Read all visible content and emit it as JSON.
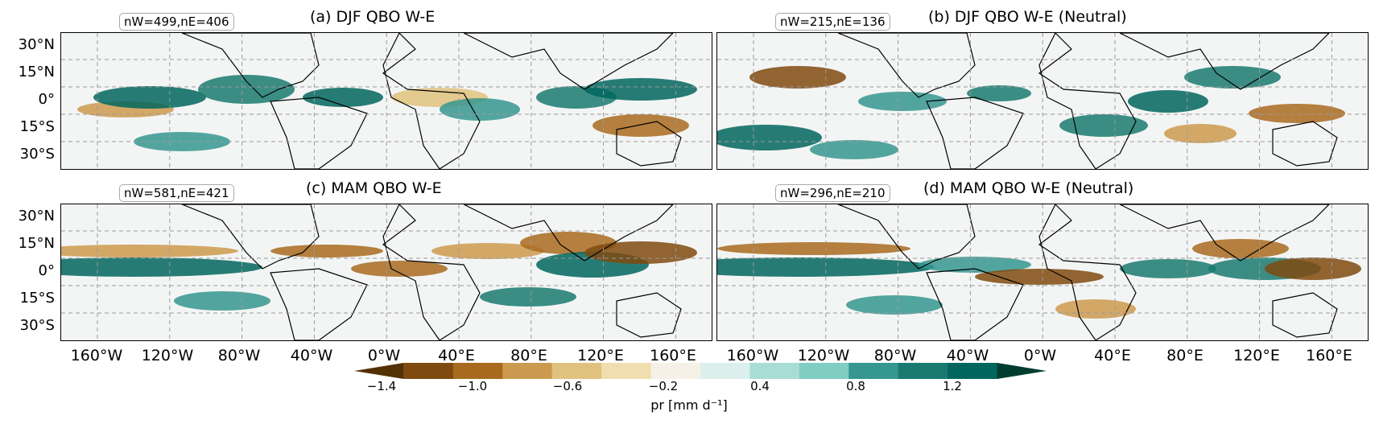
{
  "panels": [
    {
      "id": "a",
      "title": "(a) DJF QBO W-E",
      "counts": "nW=499,nE=406"
    },
    {
      "id": "b",
      "title": "(b) DJF QBO W-E (Neutral)",
      "counts": "nW=215,nE=136"
    },
    {
      "id": "c",
      "title": "(c) MAM QBO W-E",
      "counts": "nW=581,nE=421"
    },
    {
      "id": "d",
      "title": "(d) MAM QBO W-E (Neutral)",
      "counts": "nW=296,nE=210"
    }
  ],
  "lat_labels": [
    "30°N",
    "15°N",
    "0°",
    "15°S",
    "30°S"
  ],
  "lon_labels": [
    "160°W",
    "120°W",
    "80°W",
    "40°W",
    "0°W",
    "40°E",
    "80°E",
    "120°E",
    "160°E"
  ],
  "colorbar": {
    "tick_labels": [
      "−1.4",
      "−1.0",
      "−0.6",
      "−0.2",
      "0.4",
      "0.8",
      "1.2"
    ],
    "title": "pr [mm d⁻¹]",
    "colors": [
      "#543005",
      "#7f4a0f",
      "#a86a1f",
      "#cc9a4e",
      "#dfc27d",
      "#f1deb0",
      "#f5f1e6",
      "#dbefed",
      "#a8ddd6",
      "#80cdc1",
      "#35978f",
      "#1a7a70",
      "#01665e",
      "#003c30"
    ]
  }
}
